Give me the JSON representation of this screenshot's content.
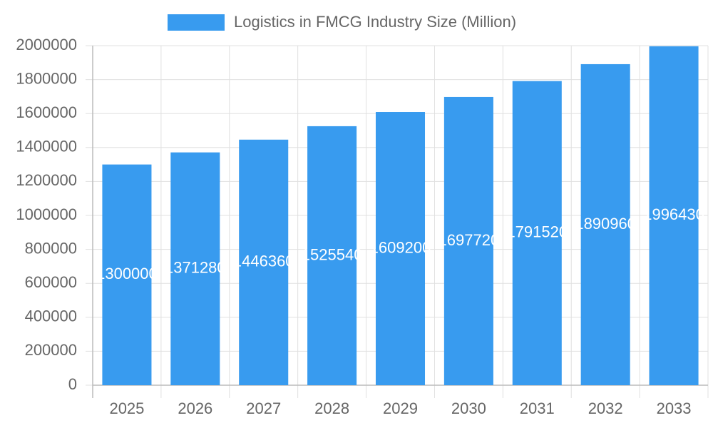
{
  "chart_data": {
    "type": "bar",
    "legend_label": "Logistics in FMCG Industry Size (Million)",
    "categories": [
      "2025",
      "2026",
      "2027",
      "2028",
      "2029",
      "2030",
      "2031",
      "2032",
      "2033"
    ],
    "values": [
      1300000,
      1371280,
      1446360,
      1525540,
      1609200,
      1697720,
      1791520,
      1890960,
      1996430
    ],
    "color": "#389bef",
    "ylim": [
      0,
      2000000
    ],
    "yticks": [
      0,
      200000,
      400000,
      600000,
      800000,
      1000000,
      1200000,
      1400000,
      1600000,
      1800000,
      2000000
    ],
    "grid": true
  }
}
